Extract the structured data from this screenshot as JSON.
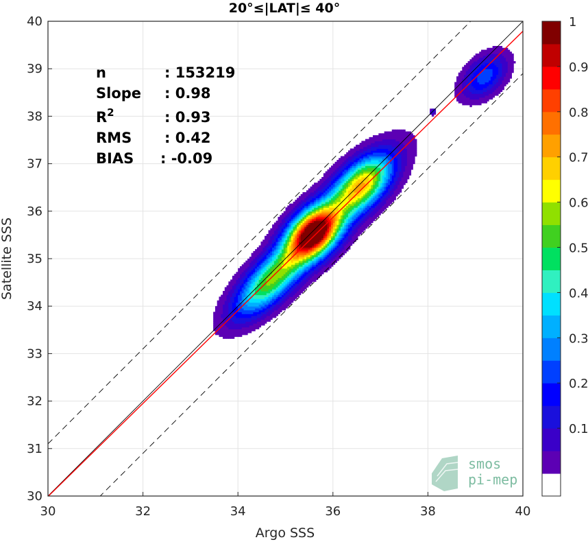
{
  "chart_data": {
    "type": "heatmap",
    "title": "20°≤|LAT|≤ 40°",
    "xlabel": "Argo SSS",
    "ylabel": "Satellite SSS",
    "xlim": [
      30,
      40
    ],
    "ylim": [
      30,
      40
    ],
    "x_ticks": [
      30,
      32,
      34,
      36,
      38,
      40
    ],
    "y_ticks": [
      30,
      31,
      32,
      33,
      34,
      35,
      36,
      37,
      38,
      39,
      40
    ],
    "grid": true,
    "stats": [
      {
        "label": "n",
        "value": ": 153219"
      },
      {
        "label": "Slope",
        "value": ": 0.98"
      },
      {
        "label": "R²",
        "value": ": 0.93"
      },
      {
        "label": "RMS",
        "value": ": 0.42"
      },
      {
        "label": "BIAS",
        "value": ": -0.09"
      }
    ],
    "lines": {
      "identity": {
        "x": [
          30,
          40
        ],
        "y": [
          30,
          40
        ],
        "color": "#000000"
      },
      "fit": {
        "x": [
          30,
          40
        ],
        "y": [
          29.99,
          39.79
        ],
        "slope": 0.98,
        "color": "#ff0000"
      },
      "bounds": {
        "offset": 1.1,
        "style": "dashed",
        "color": "#000000"
      }
    },
    "density_peaks": [
      {
        "x": 34.7,
        "y": 34.5,
        "level": 0.55
      },
      {
        "x": 35.6,
        "y": 35.55,
        "level": 1.0
      },
      {
        "x": 36.6,
        "y": 36.55,
        "level": 0.65
      },
      {
        "x": 39.2,
        "y": 38.8,
        "level": 0.28
      },
      {
        "x": 38.1,
        "y": 38.1,
        "level": 0.2
      }
    ],
    "colorbar": {
      "ticks": [
        0.1,
        0.2,
        0.3,
        0.4,
        0.5,
        0.6,
        0.7,
        0.8,
        0.9,
        1
      ],
      "tick_labels": [
        "0.1",
        "0.2",
        "0.3",
        "0.4",
        "0.5",
        "0.6",
        "0.7",
        "0.8",
        "0.9",
        "1"
      ],
      "levels": [
        0,
        0.05,
        0.1,
        0.15,
        0.2,
        0.25,
        0.3,
        0.35,
        0.4,
        0.45,
        0.5,
        0.55,
        0.6,
        0.65,
        0.7,
        0.75,
        0.8,
        0.85,
        0.9,
        0.95,
        1.0
      ],
      "colors": [
        "#ffffff",
        "#5c00b4",
        "#3a00c8",
        "#1a10dc",
        "#0000ff",
        "#0040ff",
        "#0080ff",
        "#00b0ff",
        "#00e0ff",
        "#30f0c0",
        "#00e060",
        "#40d020",
        "#90e000",
        "#ffff00",
        "#ffd000",
        "#ffa000",
        "#ff7000",
        "#ff4000",
        "#ff0000",
        "#c00000",
        "#800000"
      ]
    }
  },
  "logo": {
    "line1": "smos",
    "line2": "pi-mep"
  }
}
